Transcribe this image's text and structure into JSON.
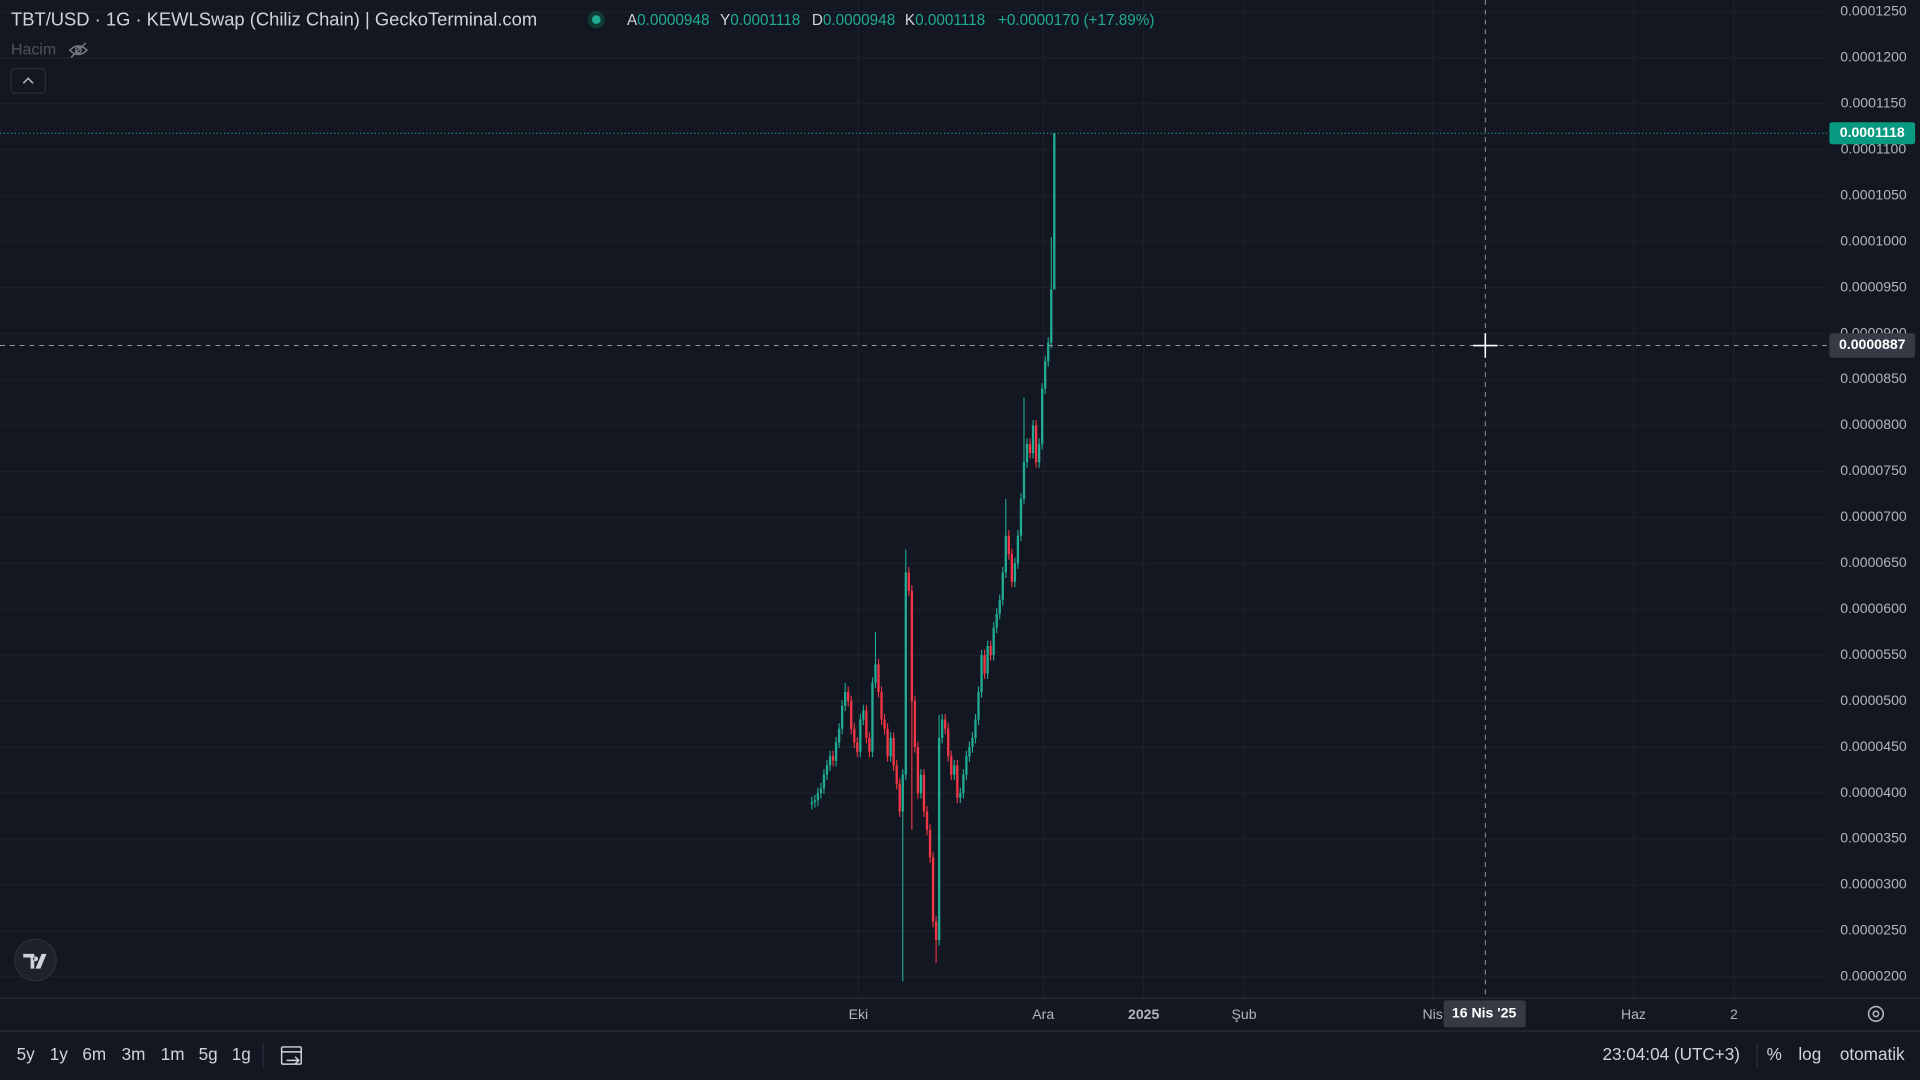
{
  "header": {
    "title": "TBT/USD · 1G · KEWLSwap (Chiliz Chain) | GeckoTerminal.com",
    "ohlc": [
      {
        "key": "A",
        "value": "0.0000948"
      },
      {
        "key": "Y",
        "value": "0.0001118"
      },
      {
        "key": "D",
        "value": "0.0000948"
      },
      {
        "key": "K",
        "value": "0.0001118"
      }
    ],
    "change": "+0.0000170 (+17.89%)",
    "volume": "Hacim"
  },
  "chart_data": {
    "type": "candlestick",
    "colors": {
      "up": "#22ab94",
      "down": "#f23645"
    },
    "open": [
      3.88e-05,
      3.9e-05,
      3.92e-05,
      4e-05,
      4.05e-05,
      4.2e-05,
      4.3e-05,
      4.4e-05,
      4.35e-05,
      4.55e-05,
      4.7e-05,
      4.95e-05,
      5.1e-05,
      5e-05,
      4.7e-05,
      4.55e-05,
      4.45e-05,
      4.8e-05,
      4.9e-05,
      4.6e-05,
      4.45e-05,
      5.2e-05,
      5.4e-05,
      5.1e-05,
      4.8e-05,
      4.7e-05,
      4.4e-05,
      4.6e-05,
      4.3e-05,
      4.1e-05,
      3.8e-05,
      4.2e-05,
      6.4e-05,
      6.2e-05,
      5e-05,
      4.5e-05,
      4e-05,
      4.2e-05,
      3.8e-05,
      3.6e-05,
      3.3e-05,
      2.6e-05,
      2.4e-05,
      4.6e-05,
      4.8e-05,
      4.7e-05,
      4.4e-05,
      4.2e-05,
      4.3e-05,
      3.95e-05,
      4e-05,
      4.2e-05,
      4.4e-05,
      4.5e-05,
      4.6e-05,
      4.8e-05,
      5.1e-05,
      5.5e-05,
      5.3e-05,
      5.6e-05,
      5.5e-05,
      5.8e-05,
      5.95e-05,
      6.1e-05,
      6.4e-05,
      6.8e-05,
      6.6e-05,
      6.3e-05,
      6.5e-05,
      6.8e-05,
      7.2e-05,
      7.6e-05,
      7.8e-05,
      7.7e-05,
      8e-05,
      7.6e-05,
      7.8e-05,
      8.4e-05,
      8.7e-05,
      8.9e-05,
      9.48e-05
    ],
    "high": [
      3.96e-05,
      3.98e-05,
      4.06e-05,
      4.11e-05,
      4.26e-05,
      4.36e-05,
      4.46e-05,
      4.46e-05,
      4.61e-05,
      4.76e-05,
      5.01e-05,
      5.2e-05,
      5.16e-05,
      5.06e-05,
      4.76e-05,
      4.61e-05,
      4.86e-05,
      4.96e-05,
      4.96e-05,
      4.66e-05,
      5.26e-05,
      5.75e-05,
      5.46e-05,
      5.16e-05,
      4.86e-05,
      4.76e-05,
      4.66e-05,
      4.66e-05,
      4.36e-05,
      4.16e-05,
      4.26e-05,
      6.65e-05,
      6.46e-05,
      6.26e-05,
      5.06e-05,
      4.56e-05,
      4.26e-05,
      4.26e-05,
      3.86e-05,
      3.66e-05,
      3.36e-05,
      2.66e-05,
      4.85e-05,
      4.86e-05,
      4.86e-05,
      4.76e-05,
      4.46e-05,
      4.36e-05,
      4.36e-05,
      4.06e-05,
      4.26e-05,
      4.46e-05,
      4.56e-05,
      4.66e-05,
      4.86e-05,
      5.16e-05,
      5.56e-05,
      5.56e-05,
      5.66e-05,
      5.66e-05,
      5.86e-05,
      6.01e-05,
      6.16e-05,
      6.46e-05,
      7.2e-05,
      6.86e-05,
      6.66e-05,
      6.56e-05,
      6.86e-05,
      7.26e-05,
      8.3e-05,
      7.86e-05,
      7.86e-05,
      8.06e-05,
      8.06e-05,
      7.86e-05,
      8.46e-05,
      8.76e-05,
      8.96e-05,
      0.0001005,
      0.0001118
    ],
    "low": [
      3.82e-05,
      3.84e-05,
      3.86e-05,
      3.94e-05,
      3.99e-05,
      4.14e-05,
      4.24e-05,
      4.29e-05,
      4.29e-05,
      4.49e-05,
      4.64e-05,
      4.89e-05,
      4.94e-05,
      4.64e-05,
      4.49e-05,
      4.39e-05,
      4.39e-05,
      4.74e-05,
      4.54e-05,
      4.39e-05,
      4.39e-05,
      5.14e-05,
      5.04e-05,
      4.74e-05,
      4.64e-05,
      4.34e-05,
      4.34e-05,
      4.24e-05,
      4.04e-05,
      3.74e-05,
      1.95e-05,
      4.14e-05,
      6.14e-05,
      3.6e-05,
      4.44e-05,
      3.94e-05,
      3.94e-05,
      3.74e-05,
      3.54e-05,
      3.24e-05,
      2.54e-05,
      2.15e-05,
      2.34e-05,
      4.54e-05,
      4.64e-05,
      4.34e-05,
      4.14e-05,
      4.14e-05,
      3.89e-05,
      3.89e-05,
      3.94e-05,
      4.14e-05,
      4.34e-05,
      4.44e-05,
      4.54e-05,
      4.74e-05,
      5.04e-05,
      5.24e-05,
      5.24e-05,
      5.44e-05,
      5.44e-05,
      5.74e-05,
      5.89e-05,
      6.04e-05,
      6.34e-05,
      6.54e-05,
      6.24e-05,
      6.24e-05,
      6.44e-05,
      6.74e-05,
      7.14e-05,
      7.54e-05,
      7.64e-05,
      7.64e-05,
      7.54e-05,
      7.54e-05,
      7.74e-05,
      8.34e-05,
      8.64e-05,
      8.84e-05,
      9.48e-05
    ],
    "close": [
      3.9e-05,
      3.92e-05,
      4e-05,
      4.05e-05,
      4.2e-05,
      4.3e-05,
      4.4e-05,
      4.35e-05,
      4.55e-05,
      4.7e-05,
      4.95e-05,
      5.1e-05,
      5e-05,
      4.7e-05,
      4.55e-05,
      4.45e-05,
      4.8e-05,
      4.9e-05,
      4.6e-05,
      4.45e-05,
      5.2e-05,
      5.4e-05,
      5.1e-05,
      4.8e-05,
      4.7e-05,
      4.4e-05,
      4.6e-05,
      4.3e-05,
      4.1e-05,
      3.8e-05,
      4.2e-05,
      6.4e-05,
      6.2e-05,
      5e-05,
      4.5e-05,
      4e-05,
      4.2e-05,
      3.8e-05,
      3.6e-05,
      3.3e-05,
      2.6e-05,
      2.4e-05,
      4.6e-05,
      4.8e-05,
      4.7e-05,
      4.4e-05,
      4.2e-05,
      4.3e-05,
      3.95e-05,
      4e-05,
      4.2e-05,
      4.4e-05,
      4.5e-05,
      4.6e-05,
      4.8e-05,
      5.1e-05,
      5.5e-05,
      5.3e-05,
      5.6e-05,
      5.5e-05,
      5.8e-05,
      5.95e-05,
      6.1e-05,
      6.4e-05,
      6.8e-05,
      6.6e-05,
      6.3e-05,
      6.5e-05,
      6.8e-05,
      7.2e-05,
      7.6e-05,
      7.8e-05,
      7.7e-05,
      8e-05,
      7.6e-05,
      7.8e-05,
      8.4e-05,
      8.7e-05,
      8.9e-05,
      9.48e-05,
      0.0001118
    ],
    "ylim": [
      1.77e-05,
      0.0001263
    ],
    "yticks": [
      {
        "value": 2e-05,
        "label": "0.0000200"
      },
      {
        "value": 2.5e-05,
        "label": "0.0000250"
      },
      {
        "value": 3e-05,
        "label": "0.0000300"
      },
      {
        "value": 3.5e-05,
        "label": "0.0000350"
      },
      {
        "value": 4e-05,
        "label": "0.0000400"
      },
      {
        "value": 4.5e-05,
        "label": "0.0000450"
      },
      {
        "value": 5e-05,
        "label": "0.0000500"
      },
      {
        "value": 5.5e-05,
        "label": "0.0000550"
      },
      {
        "value": 6e-05,
        "label": "0.0000600"
      },
      {
        "value": 6.5e-05,
        "label": "0.0000650"
      },
      {
        "value": 7e-05,
        "label": "0.0000700"
      },
      {
        "value": 7.5e-05,
        "label": "0.0000750"
      },
      {
        "value": 8e-05,
        "label": "0.0000800"
      },
      {
        "value": 8.5e-05,
        "label": "0.0000850"
      },
      {
        "value": 9e-05,
        "label": "0.0000900"
      },
      {
        "value": 9.5e-05,
        "label": "0.0000950"
      },
      {
        "value": 0.0001,
        "label": "0.0001000"
      },
      {
        "value": 0.000105,
        "label": "0.0001050"
      },
      {
        "value": 0.00011,
        "label": "0.0001100"
      },
      {
        "value": 0.000115,
        "label": "0.0001150"
      },
      {
        "value": 0.00012,
        "label": "0.0001200"
      },
      {
        "value": 0.000125,
        "label": "0.0001250"
      }
    ],
    "grid": true,
    "xtick_labels": [
      "Eki",
      "Ara",
      "2025",
      "Şub",
      "Nis",
      "Haz",
      "2"
    ],
    "crosshair": {
      "price": 8.87e-05,
      "date": "16 Nis '25"
    }
  },
  "toolbar": {
    "ranges": [
      "5y",
      "1y",
      "6m",
      "3m",
      "1m",
      "5g",
      "1g"
    ],
    "time": "23:04:04 (UTC+3)",
    "percent": "%",
    "log": "log",
    "auto": "otomatik"
  }
}
